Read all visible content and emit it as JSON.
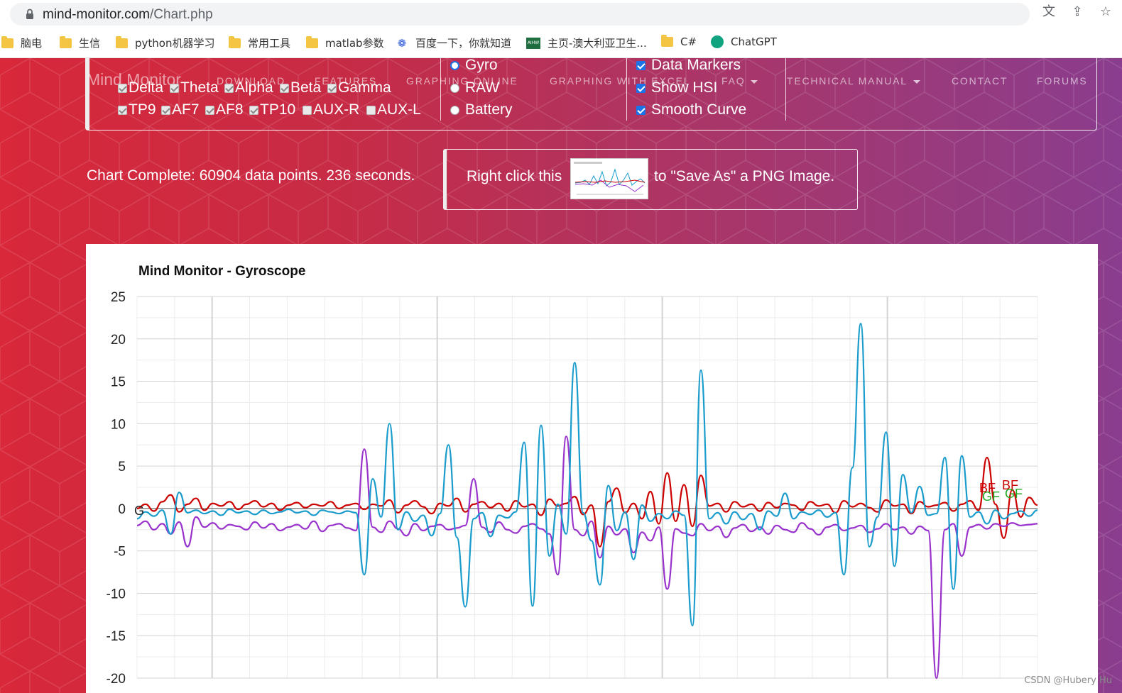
{
  "browser": {
    "url_host": "mind-monitor.com",
    "url_path": "/Chart.php",
    "icons": [
      "translate-icon",
      "share-icon",
      "star-icon"
    ]
  },
  "bookmarks": [
    {
      "label": "脑电",
      "icon": "folder-icon"
    },
    {
      "label": "生信",
      "icon": "folder-icon"
    },
    {
      "label": "python机器学习",
      "icon": "folder-icon"
    },
    {
      "label": "常用工具",
      "icon": "folder-icon"
    },
    {
      "label": "matlab参数",
      "icon": "folder-icon"
    },
    {
      "label": "百度一下，你就知道",
      "icon": "baidu-paw-icon"
    },
    {
      "label": "主页-澳大利亚卫生...",
      "icon": "aihw-icon"
    },
    {
      "label": "C#",
      "icon": "folder-icon"
    },
    {
      "label": "ChatGPT",
      "icon": "chatgpt-icon"
    }
  ],
  "nav": {
    "brand": "Mind Monitor",
    "items": [
      "DOWNLOAD",
      "FEATURES",
      "GRAPHING ONLINE",
      "GRAPHING WITH EXCEL",
      "FAQ",
      "TECHNICAL MANUAL",
      "CONTACT",
      "FORUMS"
    ]
  },
  "options": {
    "bands": [
      {
        "label": "Delta",
        "checked": true
      },
      {
        "label": "Theta",
        "checked": true
      },
      {
        "label": "Alpha",
        "checked": true
      },
      {
        "label": "Beta",
        "checked": true
      },
      {
        "label": "Gamma",
        "checked": true
      }
    ],
    "sensors": [
      {
        "label": "TP9",
        "checked": true
      },
      {
        "label": "AF7",
        "checked": true
      },
      {
        "label": "AF8",
        "checked": true
      },
      {
        "label": "TP10",
        "checked": true
      },
      {
        "label": "AUX-R",
        "checked": false
      },
      {
        "label": "AUX-L",
        "checked": false
      }
    ],
    "modes": [
      {
        "label": "Gyro",
        "selected": true
      },
      {
        "label": "RAW",
        "selected": false
      },
      {
        "label": "Battery",
        "selected": false
      }
    ],
    "toggles": [
      {
        "label": "Data Markers",
        "checked": true
      },
      {
        "label": "Show HSI",
        "checked": true
      },
      {
        "label": "Smooth Curve",
        "checked": true
      }
    ]
  },
  "status": {
    "text": "Chart Complete: 60904 data points. 236 seconds.",
    "save_pre": "Right click this",
    "save_post": "to \"Save As\" a PNG Image."
  },
  "chart_data": {
    "type": "line",
    "title": "Mind Monitor - Gyroscope",
    "ylim": [
      -20,
      25
    ],
    "yticks": [
      25,
      20,
      15,
      10,
      5,
      0,
      -5,
      -10,
      -15,
      -20
    ],
    "series": [
      {
        "color": "#cc0000",
        "values": [
          0,
          0.5,
          -0.3,
          0.8,
          1.6,
          -0.4,
          0.5,
          1.2,
          -0.2,
          0.6,
          0.3,
          0.8,
          -0.1,
          0.5,
          0.9,
          0.2,
          0.6,
          -0.2,
          0.4,
          0.7,
          0.1,
          0.5,
          0.3,
          0.8,
          0,
          0.4,
          0.6,
          -0.1,
          0.5,
          0.3,
          1,
          -0.5,
          0.4,
          0.9,
          0.2,
          -0.6,
          0.6,
          0.3,
          1.2,
          -0.4,
          0.5,
          0.8,
          0.1,
          0.6,
          -0.3,
          0.9,
          0.2,
          0.5,
          -0.8,
          1.1,
          0.3,
          0.6,
          1.4,
          -0.7,
          0.4,
          -4.5,
          0.8,
          2.4,
          -0.5,
          0.6,
          -1.2,
          2,
          -1.8,
          4.2,
          -1.5,
          2.8,
          -2.1,
          3.9,
          0.3,
          0.6,
          -0.4,
          0.8,
          0.2,
          0.5,
          -0.3,
          0.7,
          0.1,
          0.6,
          0.4,
          -0.2,
          0.8,
          0.3,
          0.5,
          -0.5,
          0.9,
          0.2,
          0.6,
          0.1,
          -0.4,
          1,
          0.3,
          0.5,
          -0.6,
          0.8,
          0.2,
          0.4,
          0.7,
          -0.3,
          0.5,
          0.9,
          -0.2,
          6,
          0.5,
          -3.5,
          2.2,
          -1,
          1.3,
          0.4
        ]
      },
      {
        "color": "#9933cc",
        "values": [
          -2,
          -1.5,
          -2.5,
          -1.8,
          -3,
          -1.6,
          -4.5,
          -1,
          -2.2,
          -1.7,
          -2.4,
          -1.9,
          -2.1,
          -2.5,
          -1.6,
          -2.3,
          -1.8,
          -2.6,
          -2.2,
          -1.9,
          -2.4,
          -1.5,
          -2.7,
          -2,
          -1.8,
          -2.3,
          -2.6,
          7,
          -2.2,
          -2.8,
          -1.5,
          -2.4,
          -3.2,
          -1.8,
          -2.6,
          -2.1,
          -1.9,
          -2.5,
          -2.3,
          -2,
          3.5,
          -2.2,
          -2.8,
          -1.6,
          -2.5,
          -2.9,
          -2.1,
          -1.8,
          -2.4,
          -3,
          -7.8,
          8.5,
          -2.5,
          -3.2,
          -1.5,
          -5.8,
          -2.1,
          -3.1,
          -2.4,
          -5.2,
          -2.8,
          -3.8,
          -2.2,
          -9.5,
          -2.4,
          -2.9,
          -3.2,
          -1.8,
          -2.6,
          -2.1,
          -3.4,
          -2.3,
          -1.9,
          -2.7,
          -2.2,
          -3,
          -2,
          -2.5,
          -2.8,
          -1.7,
          -2.4,
          -3.1,
          -2.2,
          -1.9,
          -2.6,
          -2.3,
          -2,
          -2.8,
          -2.4,
          -1.8,
          -2.5,
          -2.2,
          -3,
          -2.1,
          -2.6,
          -20,
          -2.5,
          -1.8,
          -5.6,
          -2.2,
          -1.9,
          -2.4,
          -1.8,
          -2.1,
          -1.7,
          -2,
          -1.9,
          -1.8
        ]
      },
      {
        "color": "#1a9ccc",
        "values": [
          -1.2,
          -0.4,
          -0.9,
          -0.2,
          -3,
          1.9,
          -0.5,
          -0.2,
          -0.6,
          -0.3,
          -0.8,
          -0.1,
          -0.5,
          -0.3,
          -0.7,
          -0.2,
          -0.6,
          -0.4,
          -0.1,
          -0.5,
          -0.3,
          -0.8,
          -0.2,
          -0.4,
          -0.6,
          -0.3,
          -0.5,
          -7.8,
          3.5,
          -1,
          10,
          -2.5,
          -0.4,
          -1.5,
          -0.8,
          -3.2,
          -0.6,
          7.5,
          -3.4,
          -11.6,
          -1.2,
          -0.5,
          -3.3,
          -0.8,
          -1.1,
          -0.4,
          7.8,
          -11.5,
          9.8,
          -5.6,
          0.5,
          -3,
          17.2,
          -0.5,
          -3.8,
          -9,
          2.7,
          -2.6,
          -0.4,
          -6,
          0.4,
          -1.5,
          -0.6,
          -1.2,
          -0.3,
          -0.8,
          -13.8,
          16.3,
          -1.2,
          -0.5,
          -1.8,
          -0.4,
          -1.3,
          -0.6,
          -2.5,
          -0.3,
          -0.9,
          1.8,
          -1.2,
          -0.4,
          -0.7,
          -0.2,
          -1,
          -0.5,
          -7.8,
          4.8,
          21.8,
          -4.5,
          -1,
          9,
          -6.8,
          4,
          -0.5,
          2.6,
          -0.8,
          -0.6,
          6,
          -9.5,
          6.2,
          -1,
          -0.4,
          -1.8,
          -0.2,
          -1.2,
          -0.6,
          -0.3,
          -0.9,
          -0.2
        ]
      }
    ],
    "annotations": [
      {
        "text": "G",
        "color": "#222222"
      },
      {
        "text": "BF",
        "color": "#cc0000"
      },
      {
        "text": "GF",
        "color": "#22aa22"
      },
      {
        "text": "BF",
        "color": "#cc0000"
      },
      {
        "text": "GF",
        "color": "#22aa22"
      }
    ]
  },
  "watermark": "CSDN @Hubery Hu"
}
